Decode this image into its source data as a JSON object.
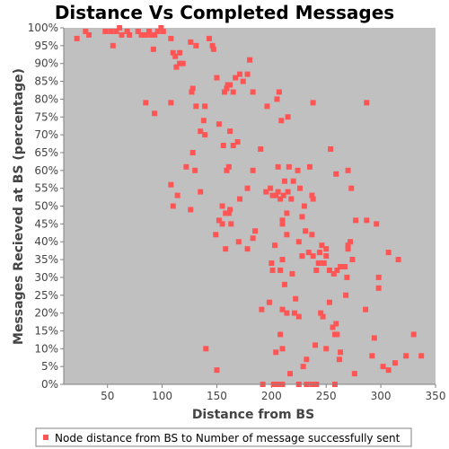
{
  "chart_data": {
    "type": "scatter",
    "title": "Distance Vs Completed Messages",
    "xlabel": "Distance from BS",
    "ylabel": "Messages Recieved at BS (percentage)",
    "xlim": [
      10,
      350
    ],
    "ylim": [
      0,
      100
    ],
    "x_ticks": [
      "50",
      "100",
      "150",
      "200",
      "250",
      "300",
      "350"
    ],
    "y_ticks": [
      "0%",
      "5%",
      "10%",
      "15%",
      "20%",
      "25%",
      "30%",
      "35%",
      "40%",
      "45%",
      "50%",
      "55%",
      "60%",
      "65%",
      "70%",
      "75%",
      "80%",
      "85%",
      "90%",
      "95%",
      "100%"
    ],
    "grid": false,
    "legend_position": "bottom",
    "colors": {
      "plot_background": "#c0c0c0",
      "series": "#ff5555"
    },
    "series": [
      {
        "name": "Node distance from BS to Number of message successfully sent",
        "points": [
          [
            22,
            97
          ],
          [
            30,
            99
          ],
          [
            33,
            98
          ],
          [
            48,
            99
          ],
          [
            53,
            99
          ],
          [
            55,
            95
          ],
          [
            58,
            99
          ],
          [
            61,
            100
          ],
          [
            63,
            98
          ],
          [
            68,
            99
          ],
          [
            70,
            98
          ],
          [
            78,
            99
          ],
          [
            81,
            98
          ],
          [
            85,
            98
          ],
          [
            88,
            99
          ],
          [
            90,
            98
          ],
          [
            93,
            98
          ],
          [
            96,
            99
          ],
          [
            99,
            100
          ],
          [
            101,
            99
          ],
          [
            108,
            97
          ],
          [
            112,
            92
          ],
          [
            113,
            89
          ],
          [
            116,
            90
          ],
          [
            119,
            90
          ],
          [
            126,
            96
          ],
          [
            131,
            95
          ],
          [
            143,
            97
          ],
          [
            146,
            95
          ],
          [
            147,
            94
          ],
          [
            85,
            79
          ],
          [
            92,
            94
          ],
          [
            93,
            76
          ],
          [
            108,
            79
          ],
          [
            110,
            93
          ],
          [
            116,
            93
          ],
          [
            127,
            82
          ],
          [
            128,
            83
          ],
          [
            131,
            78
          ],
          [
            135,
            71
          ],
          [
            138,
            74
          ],
          [
            139,
            78
          ],
          [
            139,
            70
          ],
          [
            150,
            86
          ],
          [
            152,
            73
          ],
          [
            157,
            82
          ],
          [
            159,
            83
          ],
          [
            160,
            84
          ],
          [
            162,
            84
          ],
          [
            165,
            82
          ],
          [
            167,
            86
          ],
          [
            171,
            87
          ],
          [
            174,
            85
          ],
          [
            178,
            87
          ],
          [
            180,
            91
          ],
          [
            183,
            82
          ],
          [
            190,
            66
          ],
          [
            196,
            78
          ],
          [
            205,
            80
          ],
          [
            207,
            82
          ],
          [
            209,
            74
          ],
          [
            215,
            75
          ],
          [
            238,
            79
          ],
          [
            287,
            79
          ],
          [
            108,
            56
          ],
          [
            110,
            50
          ],
          [
            114,
            53
          ],
          [
            122,
            61
          ],
          [
            126,
            49
          ],
          [
            128,
            65
          ],
          [
            130,
            60
          ],
          [
            135,
            54
          ],
          [
            155,
            50
          ],
          [
            156,
            67
          ],
          [
            158,
            48
          ],
          [
            159,
            60
          ],
          [
            161,
            61
          ],
          [
            162,
            71
          ],
          [
            162,
            49
          ],
          [
            165,
            67
          ],
          [
            169,
            68
          ],
          [
            171,
            52
          ],
          [
            178,
            55
          ],
          [
            183,
            60
          ],
          [
            195,
            54
          ],
          [
            199,
            55
          ],
          [
            201,
            53
          ],
          [
            204,
            53
          ],
          [
            206,
            61
          ],
          [
            206,
            54
          ],
          [
            208,
            52
          ],
          [
            210,
            46
          ],
          [
            210,
            45
          ],
          [
            211,
            53
          ],
          [
            212,
            57
          ],
          [
            214,
            48
          ],
          [
            215,
            54
          ],
          [
            216,
            61
          ],
          [
            218,
            52
          ],
          [
            220,
            57
          ],
          [
            224,
            60
          ],
          [
            226,
            55
          ],
          [
            228,
            47
          ],
          [
            230,
            50
          ],
          [
            235,
            61
          ],
          [
            237,
            53
          ],
          [
            238,
            52
          ],
          [
            254,
            66
          ],
          [
            259,
            59
          ],
          [
            270,
            60
          ],
          [
            273,
            55
          ],
          [
            277,
            46
          ],
          [
            287,
            46
          ],
          [
            296,
            45
          ],
          [
            149,
            42
          ],
          [
            152,
            46
          ],
          [
            155,
            45
          ],
          [
            158,
            38
          ],
          [
            161,
            48
          ],
          [
            163,
            45
          ],
          [
            170,
            40
          ],
          [
            178,
            38
          ],
          [
            183,
            41
          ],
          [
            185,
            43
          ],
          [
            200,
            34
          ],
          [
            201,
            32
          ],
          [
            203,
            39
          ],
          [
            208,
            32
          ],
          [
            210,
            35
          ],
          [
            212,
            28
          ],
          [
            214,
            42
          ],
          [
            219,
            31
          ],
          [
            222,
            24
          ],
          [
            225,
            40
          ],
          [
            228,
            36
          ],
          [
            231,
            43
          ],
          [
            234,
            37
          ],
          [
            237,
            42
          ],
          [
            238,
            36
          ],
          [
            241,
            32
          ],
          [
            243,
            34
          ],
          [
            244,
            37
          ],
          [
            246,
            39
          ],
          [
            248,
            34
          ],
          [
            250,
            38
          ],
          [
            250,
            36
          ],
          [
            253,
            32
          ],
          [
            257,
            31
          ],
          [
            260,
            32
          ],
          [
            263,
            33
          ],
          [
            267,
            33
          ],
          [
            269,
            30
          ],
          [
            270,
            38
          ],
          [
            270,
            39
          ],
          [
            272,
            40
          ],
          [
            274,
            35
          ],
          [
            298,
            30
          ],
          [
            307,
            37
          ],
          [
            316,
            35
          ],
          [
            140,
            10
          ],
          [
            150,
            4
          ],
          [
            191,
            21
          ],
          [
            198,
            23
          ],
          [
            204,
            9
          ],
          [
            208,
            14
          ],
          [
            210,
            21
          ],
          [
            210,
            10
          ],
          [
            214,
            20
          ],
          [
            217,
            3
          ],
          [
            221,
            20
          ],
          [
            225,
            19
          ],
          [
            229,
            5
          ],
          [
            232,
            7
          ],
          [
            240,
            11
          ],
          [
            245,
            20
          ],
          [
            247,
            19
          ],
          [
            250,
            10
          ],
          [
            253,
            23
          ],
          [
            256,
            16
          ],
          [
            258,
            14
          ],
          [
            259,
            17
          ],
          [
            260,
            14
          ],
          [
            262,
            7
          ],
          [
            263,
            9
          ],
          [
            268,
            25
          ],
          [
            276,
            3
          ],
          [
            286,
            21
          ],
          [
            292,
            8
          ],
          [
            294,
            13
          ],
          [
            298,
            27
          ],
          [
            302,
            5
          ],
          [
            307,
            4
          ],
          [
            313,
            6
          ],
          [
            323,
            8
          ],
          [
            330,
            14
          ],
          [
            337,
            8
          ],
          [
            192,
            0
          ],
          [
            202,
            0
          ],
          [
            206,
            0
          ],
          [
            210,
            0
          ],
          [
            225,
            0
          ],
          [
            232,
            0
          ],
          [
            237,
            0
          ],
          [
            241,
            0
          ],
          [
            258,
            0
          ]
        ]
      }
    ]
  }
}
